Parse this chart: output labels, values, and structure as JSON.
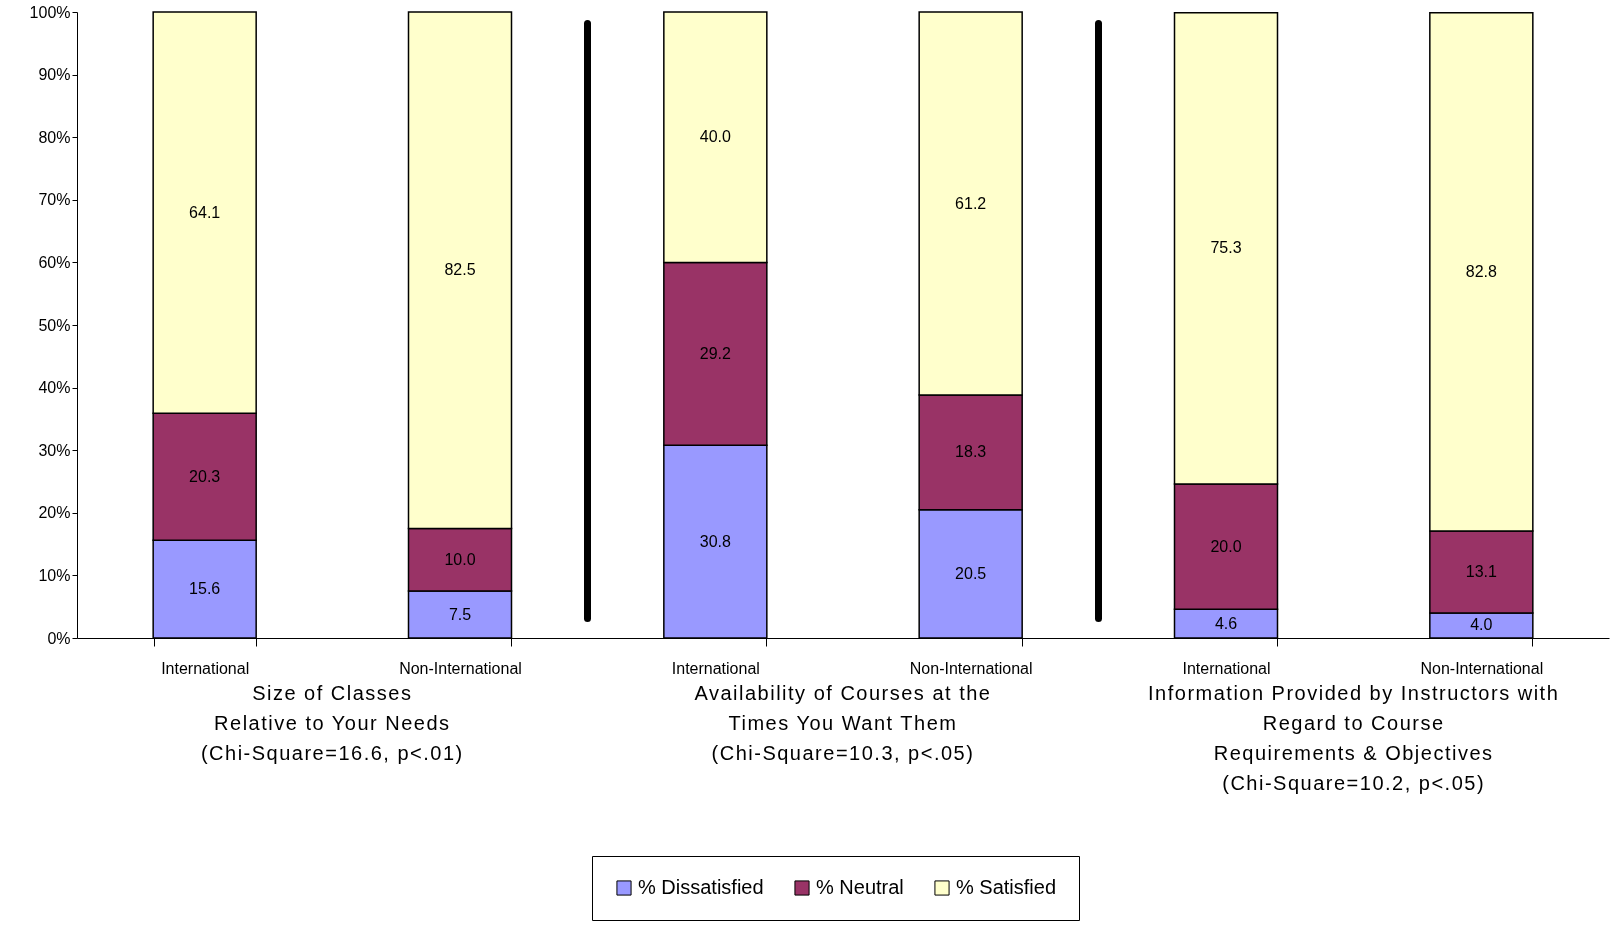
{
  "chart_data": {
    "type": "bar",
    "stacked": true,
    "categories": [
      "International",
      "Non-International",
      "International",
      "Non-International",
      "International",
      "Non-International"
    ],
    "series": [
      {
        "name": "% Dissatisfied",
        "color": "#9999ff",
        "values": [
          15.6,
          7.5,
          30.8,
          20.5,
          4.6,
          4.0
        ],
        "value_labels": [
          "15.6",
          "7.5",
          "30.8",
          "20.5",
          "4.6",
          "4.0"
        ]
      },
      {
        "name": "% Neutral",
        "color": "#993366",
        "values": [
          20.3,
          10.0,
          29.2,
          18.3,
          20.0,
          13.1
        ],
        "value_labels": [
          "20.3",
          "10.0",
          "29.2",
          "18.3",
          "20.0",
          "13.1"
        ]
      },
      {
        "name": "% Satisfied",
        "color": "#ffffcc",
        "values": [
          64.1,
          82.5,
          40.0,
          61.2,
          75.3,
          82.8
        ],
        "value_labels": [
          "64.1",
          "82.5",
          "40.0",
          "61.2",
          "75.3",
          "82.8"
        ]
      }
    ],
    "ylim": [
      0,
      100
    ],
    "yticks": [
      {
        "value": 0,
        "label": "0%"
      },
      {
        "value": 10,
        "label": "10%"
      },
      {
        "value": 20,
        "label": "20%"
      },
      {
        "value": 30,
        "label": "30%"
      },
      {
        "value": 40,
        "label": "40%"
      },
      {
        "value": 50,
        "label": "50%"
      },
      {
        "value": 60,
        "label": "60%"
      },
      {
        "value": 70,
        "label": "70%"
      },
      {
        "value": 80,
        "label": "80%"
      },
      {
        "value": 90,
        "label": "90%"
      },
      {
        "value": 100,
        "label": "100%"
      }
    ],
    "legend": "bottom",
    "annotations": [
      "Size of Classes\nRelative to Your Needs\n(Chi-Square=16.6, p<.01)",
      "Availability of Courses at the\nTimes You Want Them\n(Chi-Square=10.3, p<.05)",
      "Information Provided by Instructors with\nRegard to Course\nRequirements & Objectives\n(Chi-Square=10.2, p<.05)"
    ]
  }
}
